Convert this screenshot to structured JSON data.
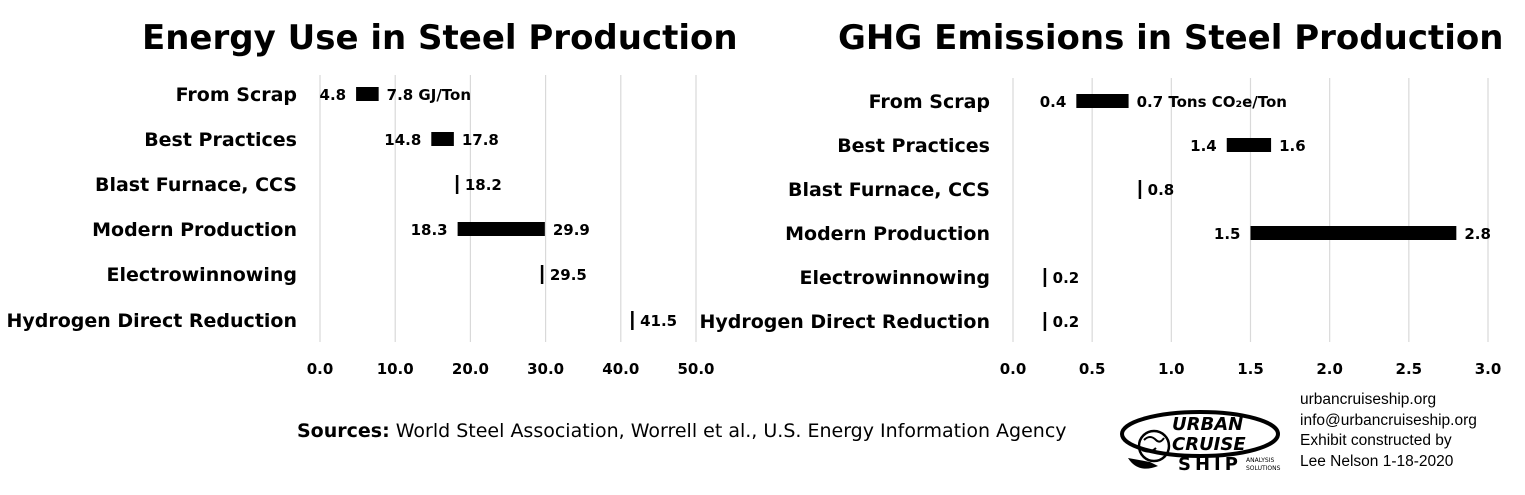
{
  "chart_data": [
    {
      "type": "bar",
      "subtype": "floating-range",
      "title": "Energy Use in Steel Production",
      "xlabel": "",
      "ylabel": "",
      "unit_label": "GJ/Ton",
      "xlim": [
        0,
        50
      ],
      "xticks": [
        "0.0",
        "10.0",
        "20.0",
        "30.0",
        "40.0",
        "50.0"
      ],
      "grid": true,
      "categories": [
        "From Scrap",
        "Best Practices",
        "Blast Furnace, CCS",
        "Modern Production",
        "Electrowinnowing",
        "Hydrogen Direct Reduction"
      ],
      "low": [
        4.8,
        14.8,
        18.2,
        18.3,
        29.5,
        41.5
      ],
      "high": [
        7.8,
        17.8,
        18.2,
        29.9,
        29.5,
        41.5
      ],
      "low_labels": [
        "4.8",
        "14.8",
        "",
        "18.3",
        "",
        ""
      ],
      "high_labels": [
        "7.8",
        "17.8",
        "18.2",
        "29.9",
        "29.5",
        "41.5"
      ]
    },
    {
      "type": "bar",
      "subtype": "floating-range",
      "title": "GHG Emissions in Steel Production",
      "xlabel": "",
      "ylabel": "",
      "unit_label": "Tons CO₂e/Ton",
      "xlim": [
        0,
        3
      ],
      "xticks": [
        "0.0",
        "0.5",
        "1.0",
        "1.5",
        "2.0",
        "2.5",
        "3.0"
      ],
      "grid": true,
      "categories": [
        "From Scrap",
        "Best Practices",
        "Blast Furnace, CCS",
        "Modern Production",
        "Electrowinnowing",
        "Hydrogen Direct Reduction"
      ],
      "low": [
        0.4,
        1.35,
        0.8,
        1.5,
        0.2,
        0.2
      ],
      "high": [
        0.73,
        1.63,
        0.8,
        2.8,
        0.2,
        0.2
      ],
      "low_labels": [
        "0.4",
        "1.4",
        "",
        "1.5",
        "",
        ""
      ],
      "high_labels": [
        "0.7",
        "1.6",
        "0.8",
        "2.8",
        "0.2",
        "0.2"
      ]
    }
  ],
  "footer": {
    "sources_label": "Sources:",
    "sources_text": " World Steel Association, Worrell et al., U.S. Energy Information Agency"
  },
  "logo": {
    "line1": "URBAN",
    "line2": "CRUISE",
    "line3": "SHIP",
    "tag1": "ANALYSIS",
    "tag2": "SOLUTIONS",
    "icon": "globe-ship-logo"
  },
  "credits": {
    "website": "urbancruiseship.org",
    "email": "info@urbancruiseship.org",
    "line3": "Exhibit constructed by",
    "line4": "Lee Nelson 1-18-2020"
  }
}
